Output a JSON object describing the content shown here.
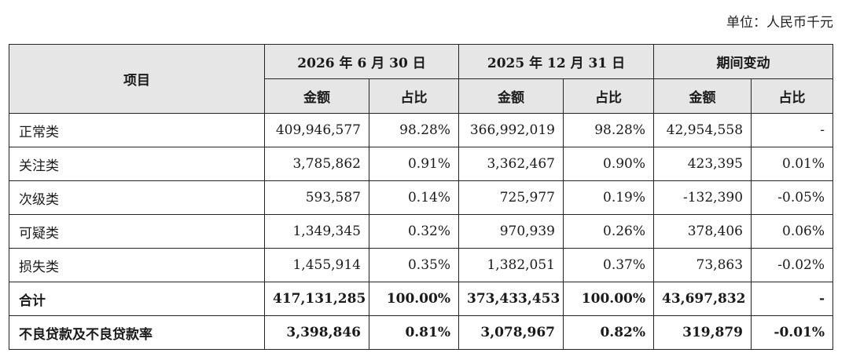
{
  "unit_label": "单位：人民币千元",
  "header": {
    "item": "项目",
    "groups": [
      "2026 年 6 月 30 日",
      "2025 年 12 月 31 日",
      "期间变动"
    ],
    "amount": "金额",
    "ratio": "占比"
  },
  "rows": [
    {
      "label": "正常类",
      "v1": "409,946,577",
      "r1": "98.28%",
      "v2": "366,992,019",
      "r2": "98.28%",
      "v3": "42,954,558",
      "r3": "-",
      "bold": false
    },
    {
      "label": "关注类",
      "v1": "3,785,862",
      "r1": "0.91%",
      "v2": "3,362,467",
      "r2": "0.90%",
      "v3": "423,395",
      "r3": "0.01%",
      "bold": false
    },
    {
      "label": "次级类",
      "v1": "593,587",
      "r1": "0.14%",
      "v2": "725,977",
      "r2": "0.19%",
      "v3": "-132,390",
      "r3": "-0.05%",
      "bold": false
    },
    {
      "label": "可疑类",
      "v1": "1,349,345",
      "r1": "0.32%",
      "v2": "970,939",
      "r2": "0.26%",
      "v3": "378,406",
      "r3": "0.06%",
      "bold": false
    },
    {
      "label": "损失类",
      "v1": "1,455,914",
      "r1": "0.35%",
      "v2": "1,382,051",
      "r2": "0.37%",
      "v3": "73,863",
      "r3": "-0.02%",
      "bold": false
    },
    {
      "label": "合计",
      "v1": "417,131,285",
      "r1": "100.00%",
      "v2": "373,433,453",
      "r2": "100.00%",
      "v3": "43,697,832",
      "r3": "-",
      "bold": true
    },
    {
      "label": "不良贷款及不良贷款率",
      "v1": "3,398,846",
      "r1": "0.81%",
      "v2": "3,078,967",
      "r2": "0.82%",
      "v3": "319,879",
      "r3": "-0.01%",
      "bold": true
    }
  ]
}
